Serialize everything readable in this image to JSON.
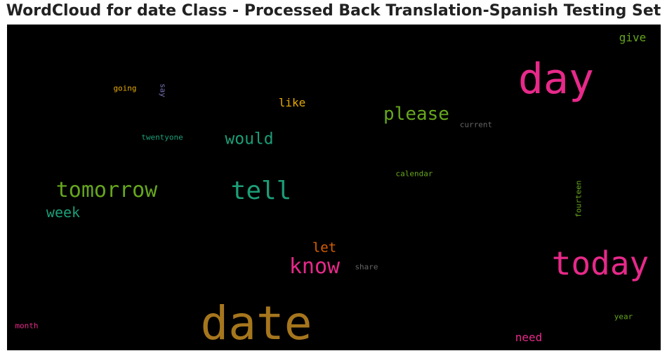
{
  "title": "WordCloud for date Class - Processed Back Translation-Spanish Testing Set",
  "words": {
    "date": "date",
    "day": "day",
    "today": "today",
    "tell": "tell",
    "tomorrow": "tomorrow",
    "know": "know",
    "please": "please",
    "would": "would",
    "week": "week",
    "let": "let",
    "like": "like",
    "need": "need",
    "give": "give",
    "going": "going",
    "say": "say",
    "twentyone": "twentyone",
    "current": "current",
    "calendar": "calendar",
    "fourteen": "fourteen",
    "share": "share",
    "year": "year",
    "month": "month"
  },
  "colors": {
    "background": "#000000",
    "pink": "#e7298a",
    "teal": "#1b9e77",
    "green": "#66a61e",
    "gold": "#a6761d",
    "orange": "#d95f02",
    "amber": "#e6ab02",
    "purple": "#7570b3",
    "gray": "#666666"
  }
}
